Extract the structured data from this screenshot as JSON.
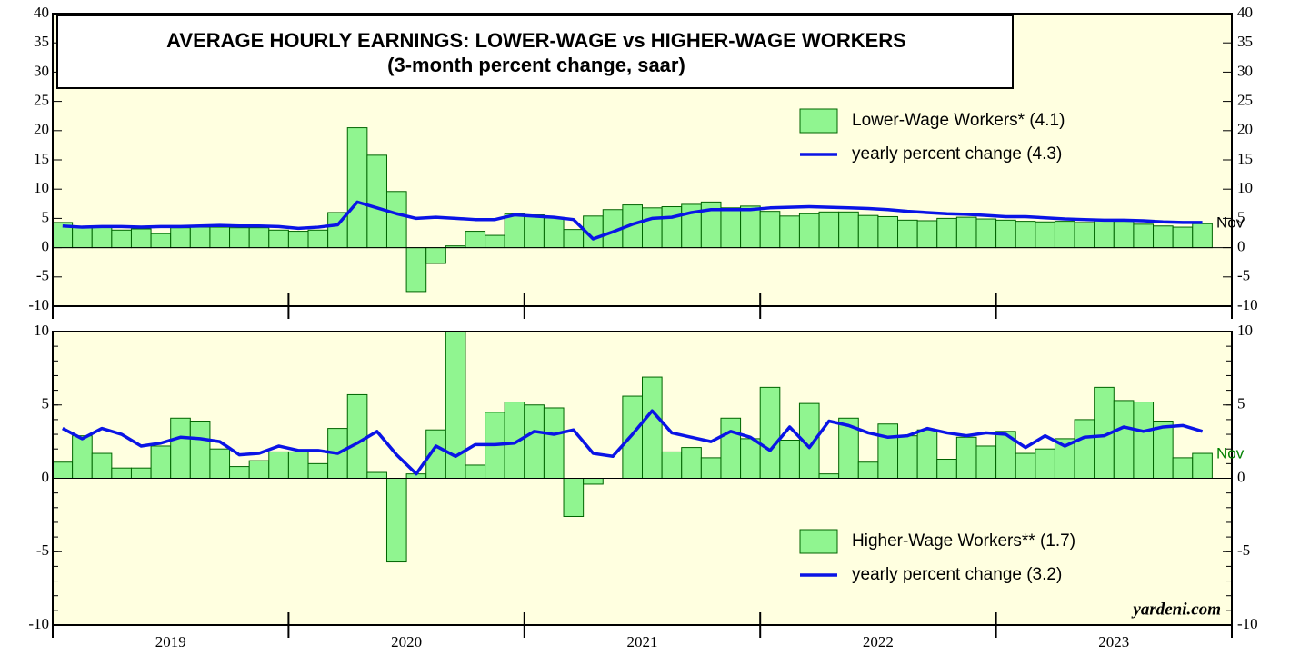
{
  "chart_data": [
    {
      "type": "bar",
      "title": "AVERAGE HOURLY EARNINGS: LOWER-WAGE vs HIGHER-WAGE WORKERS",
      "subtitle": "(3-month percent change, saar)",
      "annotation": "Nov",
      "categories": [
        null,
        null,
        null,
        null,
        null,
        null,
        null,
        null,
        null,
        null,
        null,
        null,
        null,
        null,
        null,
        null,
        null,
        null,
        null,
        null,
        null,
        null,
        null,
        null,
        null,
        null,
        null,
        null,
        null,
        null,
        null,
        null,
        null,
        null,
        null,
        null,
        null,
        null,
        null,
        null,
        null,
        null,
        null,
        null,
        null,
        null,
        null,
        null,
        null,
        null,
        null,
        null,
        null,
        null,
        null,
        null,
        null,
        null,
        null
      ],
      "series": [
        {
          "name": "Lower-Wage Workers* (4.1)",
          "type": "bar",
          "color": "#90f590",
          "values": [
            4.3,
            3.6,
            3.6,
            3.0,
            3.2,
            2.4,
            3.4,
            3.5,
            3.5,
            3.4,
            3.4,
            3.0,
            2.8,
            3.0,
            6.0,
            20.5,
            15.8,
            9.6,
            -7.5,
            -2.7,
            0.3,
            2.8,
            2.1,
            5.8,
            5.6,
            5.1,
            3.1,
            5.4,
            6.5,
            7.3,
            6.8,
            7.0,
            7.4,
            7.8,
            6.8,
            7.1,
            6.2,
            5.4,
            5.8,
            6.1,
            6.1,
            5.5,
            5.3,
            4.7,
            4.6,
            5.0,
            5.2,
            4.9,
            4.7,
            4.5,
            4.4,
            4.5,
            4.3,
            4.6,
            4.5,
            4.0,
            3.7,
            3.5,
            4.1
          ]
        },
        {
          "name": "yearly percent change (4.3)",
          "type": "line",
          "color": "#0a14e6",
          "values": [
            3.7,
            3.5,
            3.6,
            3.6,
            3.5,
            3.6,
            3.6,
            3.7,
            3.8,
            3.7,
            3.7,
            3.6,
            3.3,
            3.5,
            3.9,
            7.8,
            6.8,
            5.8,
            5.0,
            5.2,
            5.0,
            4.8,
            4.8,
            5.6,
            5.4,
            5.2,
            4.8,
            1.5,
            2.7,
            4.0,
            5.0,
            5.2,
            6.0,
            6.5,
            6.5,
            6.5,
            6.8,
            6.9,
            7.0,
            6.9,
            6.8,
            6.7,
            6.5,
            6.2,
            6.0,
            5.8,
            5.7,
            5.5,
            5.3,
            5.3,
            5.1,
            4.9,
            4.8,
            4.7,
            4.7,
            4.6,
            4.4,
            4.3,
            4.3
          ]
        }
      ],
      "ylim": [
        -10,
        40
      ],
      "yticks": [
        -10,
        -5,
        0,
        5,
        10,
        15,
        20,
        25,
        30,
        35,
        40
      ],
      "background": "#ffffe0"
    },
    {
      "type": "bar",
      "annotation": "Nov",
      "source": "yardeni.com",
      "categories": [
        null,
        null,
        null,
        null,
        null,
        null,
        null,
        null,
        null,
        null,
        null,
        null,
        null,
        null,
        null,
        null,
        null,
        null,
        null,
        null,
        null,
        null,
        null,
        null,
        null,
        null,
        null,
        null,
        null,
        null,
        null,
        null,
        null,
        null,
        null,
        null,
        null,
        null,
        null,
        null,
        null,
        null,
        null,
        null,
        null,
        null,
        null,
        null,
        null,
        null,
        null,
        null,
        null,
        null,
        null,
        null,
        null,
        null,
        null
      ],
      "xticks": [
        "2019",
        "2020",
        "2021",
        "2022",
        "2023"
      ],
      "series": [
        {
          "name": "Higher-Wage Workers** (1.7)",
          "type": "bar",
          "color": "#90f590",
          "values": [
            1.1,
            2.9,
            1.7,
            0.7,
            0.7,
            2.2,
            4.1,
            3.9,
            2.0,
            0.8,
            1.2,
            1.8,
            1.8,
            1.0,
            3.4,
            5.7,
            0.4,
            -5.7,
            0.3,
            3.3,
            10.0,
            0.9,
            4.5,
            5.2,
            5.0,
            4.8,
            -2.6,
            -0.4,
            0,
            5.6,
            6.9,
            1.8,
            2.1,
            1.4,
            4.1,
            2.7,
            6.2,
            2.6,
            5.1,
            0.3,
            4.1,
            1.1,
            3.7,
            2.9,
            3.3,
            1.3,
            2.8,
            2.2,
            3.2,
            1.7,
            2.0,
            2.7,
            4.0,
            6.2,
            5.3,
            5.2,
            3.9,
            1.4,
            1.7
          ]
        },
        {
          "name": "yearly percent change (3.2)",
          "type": "line",
          "color": "#0a14e6",
          "values": [
            3.4,
            2.7,
            3.4,
            3.0,
            2.2,
            2.4,
            2.8,
            2.7,
            2.5,
            1.6,
            1.7,
            2.2,
            1.9,
            1.9,
            1.7,
            2.4,
            3.2,
            1.6,
            0.3,
            2.2,
            1.5,
            2.3,
            2.3,
            2.4,
            3.2,
            3.0,
            3.3,
            1.7,
            1.5,
            3.0,
            4.6,
            3.1,
            2.8,
            2.5,
            3.2,
            2.8,
            1.9,
            3.5,
            2.1,
            3.9,
            3.6,
            3.1,
            2.8,
            2.9,
            3.4,
            3.1,
            2.9,
            3.1,
            3.0,
            2.1,
            2.9,
            2.2,
            2.8,
            2.9,
            3.5,
            3.2,
            3.5,
            3.6,
            3.2
          ]
        }
      ],
      "ylim": [
        -10,
        10
      ],
      "yticks": [
        -10,
        -5,
        0,
        5,
        10
      ],
      "background": "#ffffe0"
    }
  ]
}
